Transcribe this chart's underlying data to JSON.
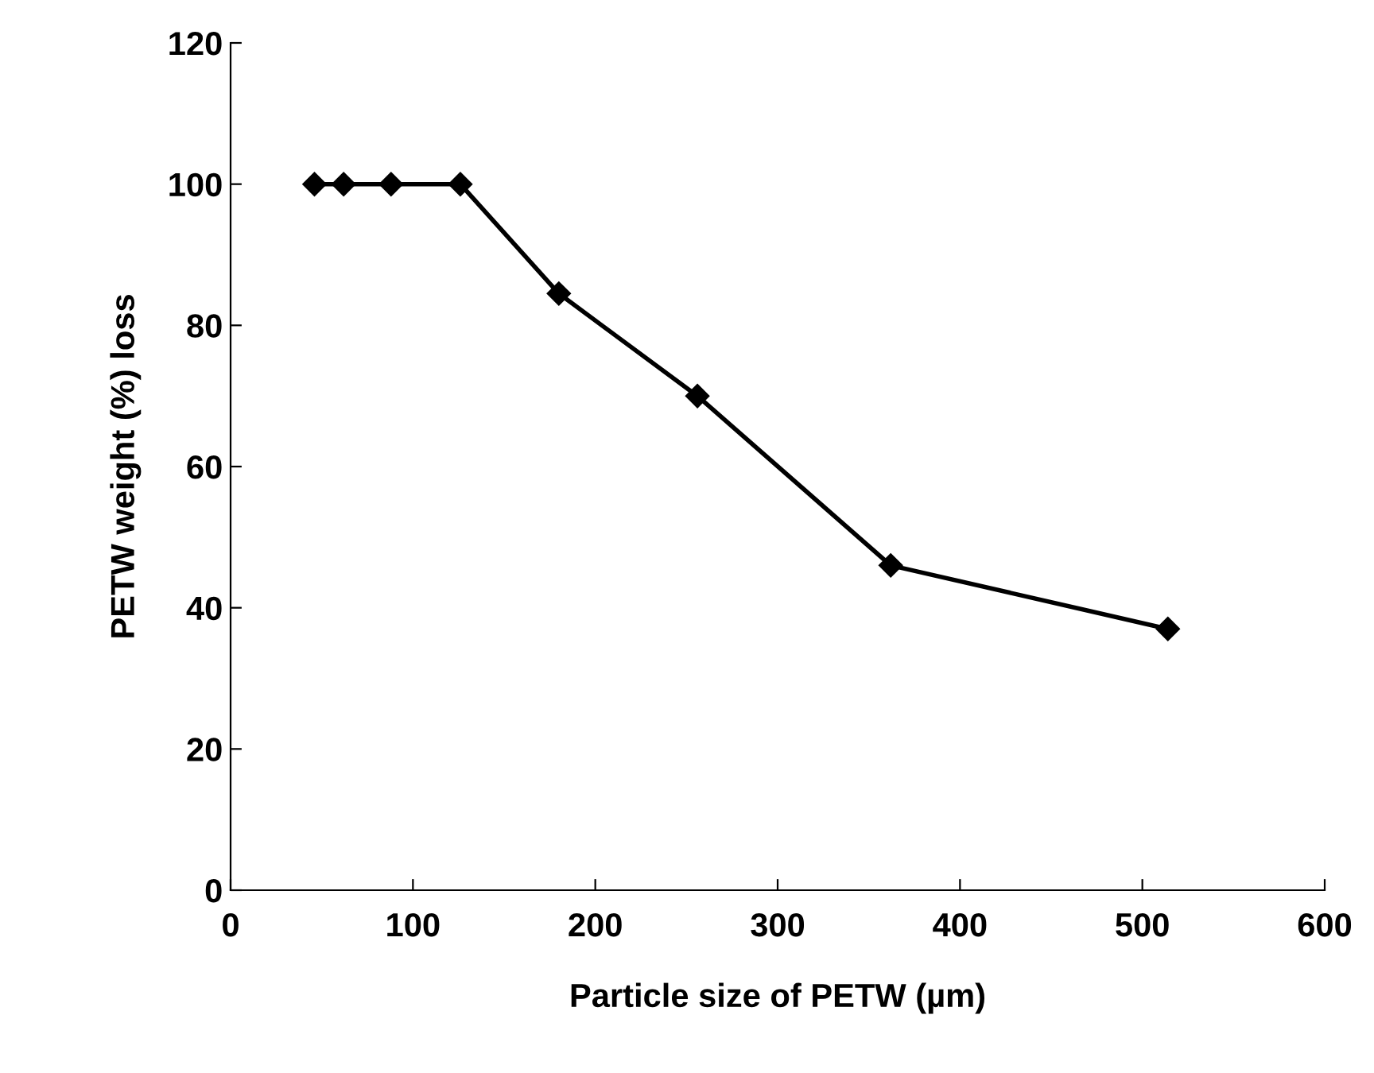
{
  "chart_data": {
    "type": "line",
    "xlabel": "Particle size of PETW (µm)",
    "ylabel": "PETW weight (%) loss",
    "x": [
      46,
      62,
      88,
      126,
      180,
      256,
      362,
      514
    ],
    "values": [
      100,
      100,
      100,
      100,
      84.5,
      70,
      46,
      37
    ],
    "color": "#000000",
    "marker": "diamond",
    "line_style": "solid",
    "grid": false,
    "xlim": [
      0,
      600
    ],
    "xticks": [
      0,
      100,
      200,
      300,
      400,
      500,
      600
    ],
    "ylim": [
      0,
      120
    ],
    "yticks": [
      0,
      20,
      40,
      60,
      80,
      100,
      120
    ]
  }
}
